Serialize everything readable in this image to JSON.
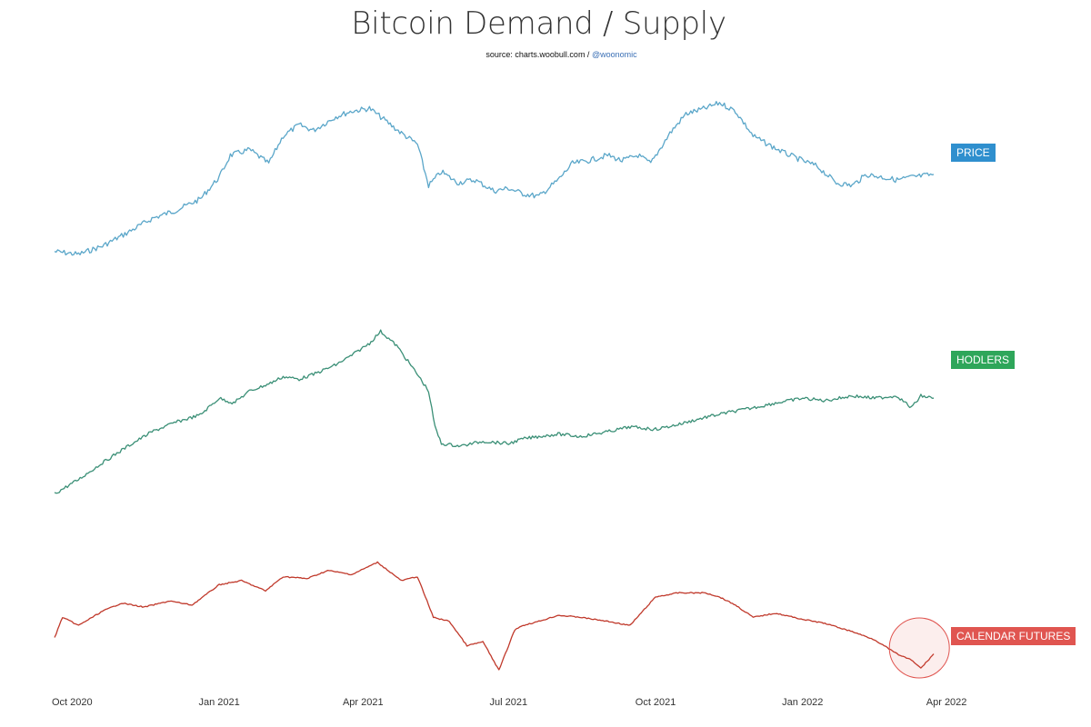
{
  "chart_data": {
    "type": "line",
    "title": "Bitcoin Demand / Supply",
    "subtitle": {
      "prefix": "source: charts.woobull.com / ",
      "handle": "@woonomic"
    },
    "x_ticks": [
      "Oct 2020",
      "Jan 2021",
      "Apr 2021",
      "Jul 2021",
      "Oct 2021",
      "Jan 2022",
      "Apr 2022"
    ],
    "x_range": [
      "2020-09-20",
      "2022-03-24"
    ],
    "x_ticks_dates": [
      "2020-10-01",
      "2021-01-01",
      "2021-04-01",
      "2021-07-01",
      "2021-10-01",
      "2022-01-01",
      "2022-04-01"
    ],
    "y_axis": "none",
    "grid": false,
    "legend": "right-edge series labels",
    "series": [
      {
        "name": "PRICE",
        "color": "#5aa6c9",
        "label_color": "#2f8fce",
        "x": [
          "2020-09-20",
          "2020-10-05",
          "2020-10-20",
          "2020-11-05",
          "2020-11-20",
          "2020-12-05",
          "2020-12-20",
          "2021-01-01",
          "2021-01-08",
          "2021-01-20",
          "2021-02-01",
          "2021-02-10",
          "2021-02-20",
          "2021-03-01",
          "2021-03-15",
          "2021-03-25",
          "2021-04-05",
          "2021-04-14",
          "2021-04-25",
          "2021-05-05",
          "2021-05-12",
          "2021-05-20",
          "2021-05-30",
          "2021-06-10",
          "2021-06-22",
          "2021-07-01",
          "2021-07-10",
          "2021-07-20",
          "2021-08-01",
          "2021-08-10",
          "2021-08-20",
          "2021-09-01",
          "2021-09-10",
          "2021-09-20",
          "2021-09-28",
          "2021-10-10",
          "2021-10-20",
          "2021-11-01",
          "2021-11-10",
          "2021-11-20",
          "2021-12-01",
          "2021-12-10",
          "2021-12-20",
          "2022-01-01",
          "2022-01-10",
          "2022-01-22",
          "2022-02-01",
          "2022-02-10",
          "2022-02-20",
          "2022-03-01",
          "2022-03-10",
          "2022-03-24"
        ],
        "values": [
          39,
          38,
          41,
          46,
          51,
          54,
          58,
          66,
          74,
          76,
          71,
          81,
          85,
          83,
          88,
          90,
          91,
          87,
          82,
          78,
          63,
          68,
          64,
          65,
          61,
          62,
          60,
          59,
          65,
          71,
          72,
          74,
          72,
          74,
          71,
          82,
          89,
          91,
          93,
          90,
          81,
          78,
          75,
          72,
          70,
          64,
          63,
          67,
          66,
          65,
          66,
          67
        ]
      },
      {
        "name": "HODLERS",
        "color": "#3a8f76",
        "label_color": "#2ea65a",
        "x": [
          "2020-09-20",
          "2020-10-05",
          "2020-10-20",
          "2020-11-05",
          "2020-11-20",
          "2020-12-05",
          "2020-12-20",
          "2021-01-01",
          "2021-01-10",
          "2021-01-20",
          "2021-02-01",
          "2021-02-10",
          "2021-02-20",
          "2021-03-01",
          "2021-03-15",
          "2021-03-25",
          "2021-04-05",
          "2021-04-12",
          "2021-04-22",
          "2021-05-05",
          "2021-05-12",
          "2021-05-16",
          "2021-05-20",
          "2021-06-01",
          "2021-06-15",
          "2021-07-01",
          "2021-07-10",
          "2021-07-20",
          "2021-08-01",
          "2021-08-15",
          "2021-09-01",
          "2021-09-15",
          "2021-10-01",
          "2021-10-15",
          "2021-11-01",
          "2021-11-15",
          "2021-12-01",
          "2021-12-15",
          "2022-01-01",
          "2022-01-15",
          "2022-02-01",
          "2022-02-15",
          "2022-03-01",
          "2022-03-10",
          "2022-03-16",
          "2022-03-24"
        ],
        "values": [
          12,
          18,
          25,
          32,
          38,
          42,
          45,
          52,
          50,
          55,
          58,
          61,
          60,
          62,
          66,
          70,
          75,
          80,
          74,
          62,
          55,
          40,
          33,
          32,
          34,
          33,
          35,
          36,
          37,
          36,
          38,
          40,
          39,
          41,
          44,
          46,
          48,
          50,
          52,
          51,
          53,
          52,
          53,
          48,
          53,
          52
        ]
      },
      {
        "name": "CALENDAR FUTURES",
        "color": "#c0392b",
        "label_color": "#e05550",
        "x": [
          "2020-09-20",
          "2020-09-25",
          "2020-10-05",
          "2020-10-20",
          "2020-11-01",
          "2020-11-15",
          "2020-12-01",
          "2020-12-15",
          "2021-01-01",
          "2021-01-15",
          "2021-01-30",
          "2021-02-10",
          "2021-02-25",
          "2021-03-10",
          "2021-03-25",
          "2021-04-10",
          "2021-04-15",
          "2021-04-25",
          "2021-05-05",
          "2021-05-15",
          "2021-05-25",
          "2021-06-05",
          "2021-06-15",
          "2021-06-25",
          "2021-07-05",
          "2021-07-10",
          "2021-07-20",
          "2021-08-01",
          "2021-08-15",
          "2021-09-01",
          "2021-09-15",
          "2021-10-01",
          "2021-10-15",
          "2021-11-01",
          "2021-11-10",
          "2021-11-20",
          "2021-12-01",
          "2021-12-15",
          "2022-01-01",
          "2022-01-15",
          "2022-02-01",
          "2022-02-15",
          "2022-03-01",
          "2022-03-10",
          "2022-03-16",
          "2022-03-24"
        ],
        "values": [
          18,
          28,
          24,
          31,
          35,
          33,
          36,
          34,
          44,
          46,
          41,
          48,
          47,
          51,
          49,
          55,
          52,
          46,
          48,
          28,
          26,
          14,
          16,
          2,
          22,
          24,
          26,
          29,
          28,
          26,
          24,
          38,
          40,
          40,
          38,
          34,
          28,
          30,
          27,
          25,
          21,
          17,
          10,
          7,
          3,
          10
        ]
      }
    ],
    "annotation": {
      "type": "circle-highlight",
      "series": "CALENDAR FUTURES",
      "x": "2022-03-15"
    }
  }
}
